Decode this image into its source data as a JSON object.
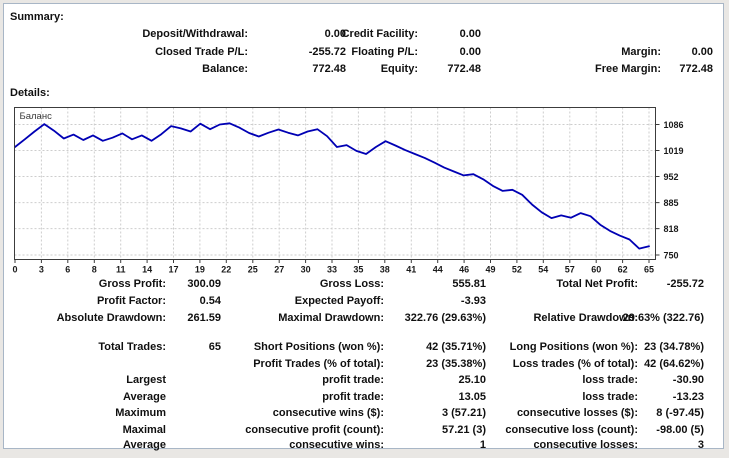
{
  "summary": {
    "title": "Summary:",
    "rows": [
      [
        "Deposit/Withdrawal:",
        "0.00",
        "Credit Facility:",
        "0.00",
        "",
        ""
      ],
      [
        "Closed Trade P/L:",
        "-255.72",
        "Floating P/L:",
        "0.00",
        "Margin:",
        "0.00"
      ],
      [
        "Balance:",
        "772.48",
        "Equity:",
        "772.48",
        "Free Margin:",
        "772.48"
      ]
    ]
  },
  "details": {
    "title": "Details:",
    "rows": [
      [
        "Gross Profit:",
        "300.09",
        "Gross Loss:",
        "555.81",
        "Total Net Profit:",
        "-255.72"
      ],
      [
        "Profit Factor:",
        "0.54",
        "Expected Payoff:",
        "-3.93",
        "",
        ""
      ],
      [
        "Absolute Drawdown:",
        "261.59",
        "Maximal Drawdown:",
        "322.76 (29.63%)",
        "Relative Drawdown:",
        "29.63% (322.76)"
      ],
      [
        "Total Trades:",
        "65",
        "Short Positions (won %):",
        "42 (35.71%)",
        "Long Positions (won %):",
        "23 (34.78%)"
      ],
      [
        "",
        "",
        "Profit Trades (% of total):",
        "23 (35.38%)",
        "Loss trades (% of total):",
        "42 (64.62%)"
      ],
      [
        "Largest",
        "",
        "profit trade:",
        "25.10",
        "loss trade:",
        "-30.90"
      ],
      [
        "Average",
        "",
        "profit trade:",
        "13.05",
        "loss trade:",
        "-13.23"
      ],
      [
        "Maximum",
        "",
        "consecutive wins ($):",
        "3 (57.21)",
        "consecutive losses ($):",
        "8 (-97.45)"
      ],
      [
        "Maximal",
        "",
        "consecutive profit (count):",
        "57.21 (3)",
        "consecutive loss (count):",
        "-98.00 (5)"
      ],
      [
        "Average",
        "",
        "consecutive wins:",
        "1",
        "consecutive losses:",
        "3"
      ]
    ]
  },
  "chart_data": {
    "type": "line",
    "title": "",
    "legend": "Баланс",
    "legend_position": "top-left",
    "grid": true,
    "xlabel": "",
    "ylabel": "",
    "x_ticks": [
      0,
      3,
      6,
      8,
      11,
      14,
      17,
      19,
      22,
      25,
      27,
      30,
      33,
      35,
      38,
      41,
      44,
      46,
      49,
      52,
      54,
      57,
      60,
      62,
      65
    ],
    "y_ticks": [
      1086,
      1019,
      952,
      885,
      818,
      750
    ],
    "xlim": [
      0,
      65
    ],
    "ylim": [
      738,
      1130
    ],
    "line_color": "#0000b4",
    "grid_color": "#cdcdcd",
    "series": [
      {
        "name": "Баланс",
        "x_is_trade_number": true,
        "values": [
          1028,
          1048,
          1068,
          1087,
          1070,
          1050,
          1060,
          1046,
          1058,
          1044,
          1052,
          1063,
          1048,
          1058,
          1044,
          1061,
          1082,
          1076,
          1068,
          1088,
          1074,
          1086,
          1089,
          1078,
          1064,
          1055,
          1065,
          1073,
          1065,
          1058,
          1068,
          1074,
          1056,
          1028,
          1033,
          1018,
          1010,
          1028,
          1043,
          1032,
          1020,
          1010,
          1000,
          988,
          975,
          965,
          955,
          958,
          945,
          928,
          915,
          918,
          905,
          880,
          860,
          845,
          852,
          846,
          858,
          850,
          828,
          812,
          800,
          790,
          766.5,
          772.48
        ]
      }
    ]
  }
}
